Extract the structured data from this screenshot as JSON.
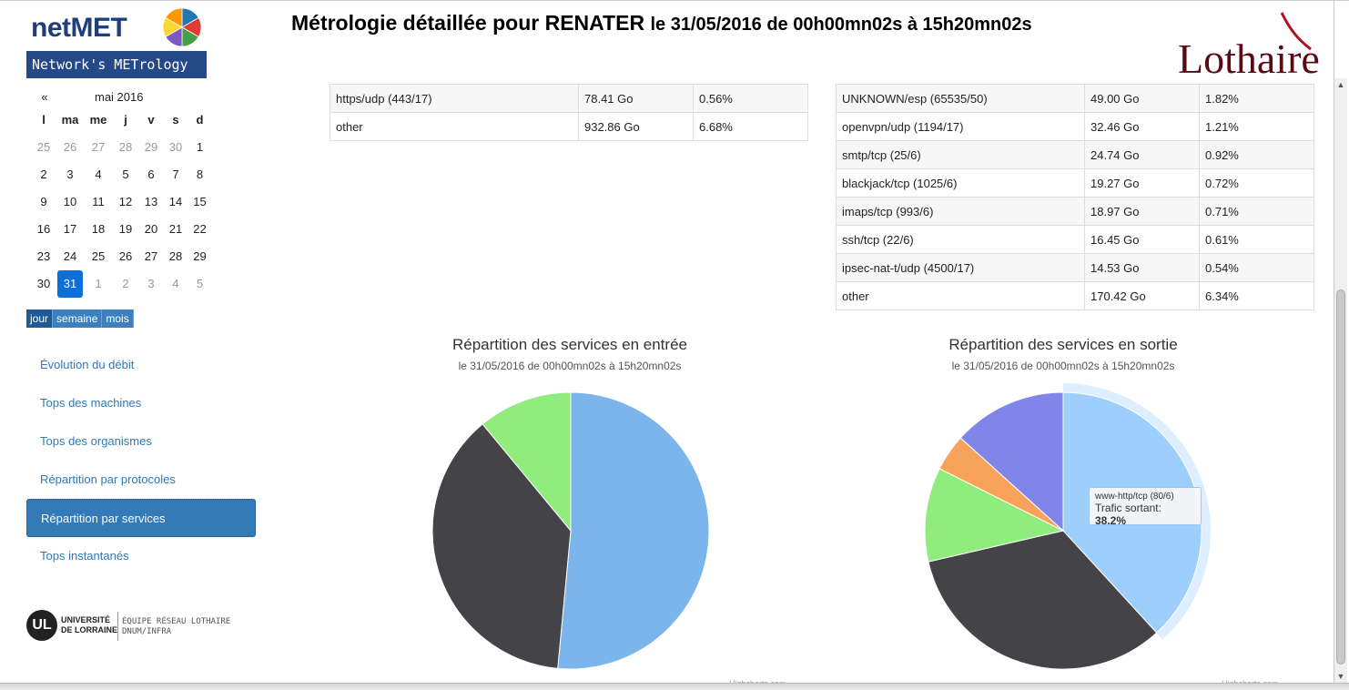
{
  "logo": {
    "name": "netMET",
    "tagline": "Network's METrology",
    "pie_colors": [
      "#1f77b4",
      "#e53935",
      "#43a047",
      "#7e57c2",
      "#fdd835",
      "#ff9800"
    ]
  },
  "header": {
    "title_main": "Métrologie détaillée pour RENATER",
    "title_sub": "le 31/05/2016 de 00h00mn02s à 15h20mn02s",
    "partner_logo": "Lothaire"
  },
  "calendar": {
    "prev": "«",
    "month": "mai 2016",
    "days_of_week": [
      "l",
      "ma",
      "me",
      "j",
      "v",
      "s",
      "d"
    ],
    "weeks": [
      [
        {
          "d": "25",
          "m": true
        },
        {
          "d": "26",
          "m": true
        },
        {
          "d": "27",
          "m": true
        },
        {
          "d": "28",
          "m": true
        },
        {
          "d": "29",
          "m": true
        },
        {
          "d": "30",
          "m": true
        },
        {
          "d": "1"
        }
      ],
      [
        {
          "d": "2"
        },
        {
          "d": "3"
        },
        {
          "d": "4"
        },
        {
          "d": "5"
        },
        {
          "d": "6"
        },
        {
          "d": "7"
        },
        {
          "d": "8"
        }
      ],
      [
        {
          "d": "9"
        },
        {
          "d": "10"
        },
        {
          "d": "11"
        },
        {
          "d": "12"
        },
        {
          "d": "13"
        },
        {
          "d": "14"
        },
        {
          "d": "15"
        }
      ],
      [
        {
          "d": "16"
        },
        {
          "d": "17"
        },
        {
          "d": "18"
        },
        {
          "d": "19"
        },
        {
          "d": "20"
        },
        {
          "d": "21"
        },
        {
          "d": "22"
        }
      ],
      [
        {
          "d": "23"
        },
        {
          "d": "24"
        },
        {
          "d": "25"
        },
        {
          "d": "26"
        },
        {
          "d": "27"
        },
        {
          "d": "28"
        },
        {
          "d": "29"
        }
      ],
      [
        {
          "d": "30"
        },
        {
          "d": "31",
          "sel": true
        },
        {
          "d": "1",
          "m": true
        },
        {
          "d": "2",
          "m": true
        },
        {
          "d": "3",
          "m": true
        },
        {
          "d": "4",
          "m": true
        },
        {
          "d": "5",
          "m": true
        }
      ]
    ],
    "views": [
      "jour",
      "semaine",
      "mois"
    ],
    "selected_view": "jour"
  },
  "nav": {
    "items": [
      {
        "label": "Évolution du débit"
      },
      {
        "label": "Tops des machines"
      },
      {
        "label": "Tops des organismes"
      },
      {
        "label": "Répartition par protocoles"
      },
      {
        "label": "Répartition par services",
        "active": true
      },
      {
        "label": "Tops instantanés"
      }
    ]
  },
  "footer_logo": {
    "mark": "UL",
    "university_line1": "UNIVERSITÉ",
    "university_line2": "DE LORRAINE",
    "team_line1": "ÉQUIPE RÉSEAU LOTHAIRE",
    "team_line2": "DNUM/INFRA"
  },
  "table_in": {
    "rows": [
      [
        "https/udp (443/17)",
        "78.41 Go",
        "0.56%"
      ],
      [
        "other",
        "932.86 Go",
        "6.68%"
      ]
    ]
  },
  "table_out": {
    "rows": [
      [
        "UNKNOWN/esp (65535/50)",
        "49.00 Go",
        "1.82%"
      ],
      [
        "openvpn/udp (1194/17)",
        "32.46 Go",
        "1.21%"
      ],
      [
        "smtp/tcp (25/6)",
        "24.74 Go",
        "0.92%"
      ],
      [
        "blackjack/tcp (1025/6)",
        "19.27 Go",
        "0.72%"
      ],
      [
        "imaps/tcp (993/6)",
        "18.97 Go",
        "0.71%"
      ],
      [
        "ssh/tcp (22/6)",
        "16.45 Go",
        "0.61%"
      ],
      [
        "ipsec-nat-t/udp (4500/17)",
        "14.53 Go",
        "0.54%"
      ],
      [
        "other",
        "170.42 Go",
        "6.34%"
      ]
    ]
  },
  "chart_data": [
    {
      "type": "pie",
      "title": "Répartition des services en entrée",
      "subtitle": "le 31/05/2016 de 00h00mn02s à 15h20mn02s",
      "credit": "Highcharts.com",
      "slices": [
        {
          "value": 51.5,
          "color": "#7cb5ec"
        },
        {
          "value": 37.5,
          "color": "#434348"
        },
        {
          "value": 11.0,
          "color": "#90ed7d"
        }
      ]
    },
    {
      "type": "pie",
      "title": "Répartition des services en sortie",
      "subtitle": "le 31/05/2016 de 00h00mn02s à 15h20mn02s",
      "credit": "Highcharts.com",
      "slices": [
        {
          "value": 38.2,
          "color": "#9ecffc",
          "hovered": true
        },
        {
          "value": 33.2,
          "color": "#434348"
        },
        {
          "value": 11.0,
          "color": "#90ed7d"
        },
        {
          "value": 4.3,
          "color": "#f7a35c"
        },
        {
          "value": 13.3,
          "color": "#8085e9"
        }
      ],
      "tooltip": {
        "name": "www-http/tcp (80/6)",
        "label": "Trafic sortant:",
        "value": "38.2%"
      }
    }
  ]
}
